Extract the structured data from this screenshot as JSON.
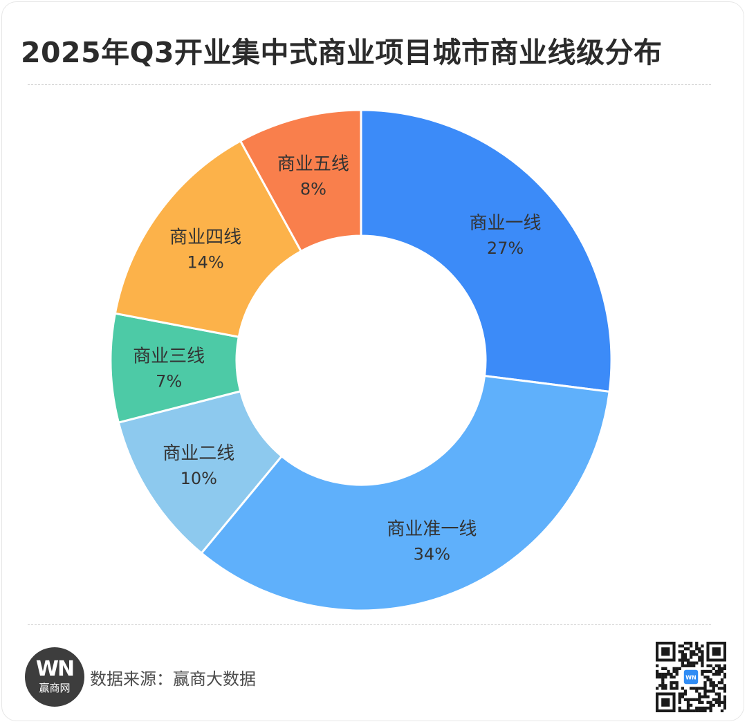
{
  "title": "2025年Q3开业集中式商业项目城市商业线级分布",
  "footer": {
    "logo_mark": "WN",
    "logo_text": "赢商网",
    "source": "数据来源：赢商大数据",
    "qr_badge": "WN"
  },
  "colors": {
    "title": "#2b2b2b",
    "label": "#333333"
  },
  "chart_data": {
    "type": "pie",
    "donut": true,
    "title": "2025年Q3开业集中式商业项目城市商业线级分布",
    "start": "12 o'clock",
    "direction": "clockwise",
    "slices": [
      {
        "label": "商业一线",
        "value": 27,
        "display": "27%",
        "color": "#3c8bf8"
      },
      {
        "label": "商业准一线",
        "value": 34,
        "display": "34%",
        "color": "#5fb0fb"
      },
      {
        "label": "商业二线",
        "value": 10,
        "display": "10%",
        "color": "#8dc9ee"
      },
      {
        "label": "商业三线",
        "value": 7,
        "display": "7%",
        "color": "#4dcaa6"
      },
      {
        "label": "商业四线",
        "value": 14,
        "display": "14%",
        "color": "#fcb24a"
      },
      {
        "label": "商业五线",
        "value": 8,
        "display": "8%",
        "color": "#f97f4c"
      }
    ],
    "legend": "none"
  }
}
